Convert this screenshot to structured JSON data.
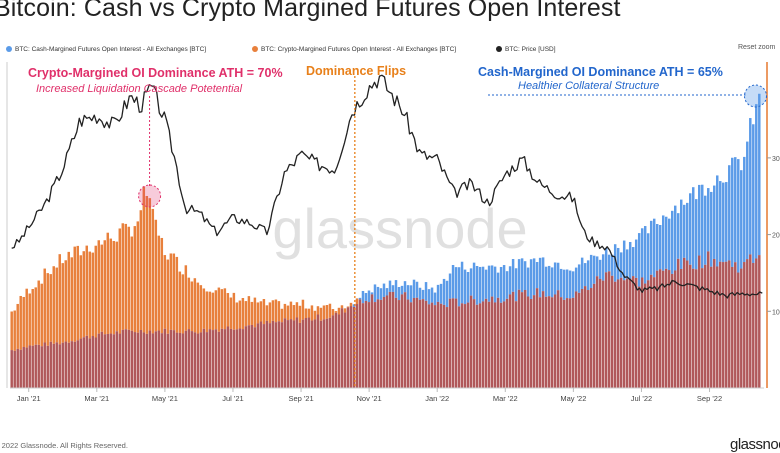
{
  "title": "Bitcoin: Cash vs Crypto Margined Futures Open Interest",
  "legend": [
    {
      "label": "BTC: Cash-Margined Futures Open Interest - All Exchanges [BTC]",
      "color": "#5b9be8"
    },
    {
      "label": "BTC: Crypto-Margined Futures Open Interest - All Exchanges [BTC]",
      "color": "#e8803c"
    },
    {
      "label": "BTC: Price [USD]",
      "color": "#222222"
    }
  ],
  "reset_label": "Reset zoom",
  "watermark": "glassnode",
  "footer": {
    "copyright": "© 2022 Glassnode. All Rights Reserved.",
    "logo": "glassnode"
  },
  "colors": {
    "cash": "#5b9be8",
    "crypto": "#e8803c",
    "overlap": "#b0585a",
    "price": "#222222",
    "ann_pink": "#e0306a",
    "ann_orange": "#e8801a",
    "ann_blue": "#2266cc"
  },
  "annotations": {
    "crypto_ath_title": "Crypto-Margined OI Dominance ATH = 70%",
    "crypto_ath_sub": "Increased Liquidation Cascade Potetential",
    "flip_title": "Dominance Flips",
    "cash_ath_title": "Cash-Margined OI Dominance ATH = 65%",
    "cash_ath_sub": "Healthier Collateral Structure"
  },
  "chart_data": {
    "type": "bar",
    "x_tick_labels": [
      "Jan '21",
      "Mar '21",
      "May '21",
      "Jul '21",
      "Sep '21",
      "Nov '21",
      "Jan '22",
      "Mar '22",
      "May '22",
      "Jul '22",
      "Sep '22"
    ],
    "x_tick_months": [
      0,
      2,
      4,
      6,
      8,
      10,
      12,
      14,
      16,
      18,
      20
    ],
    "x_range_months": [
      -0.55,
      21.6
    ],
    "right_axis_ticks": [
      "10",
      "20",
      "30"
    ],
    "right_axis_values": [
      10,
      20,
      30
    ],
    "right_axis_range": [
      0,
      42.5
    ],
    "series": [
      {
        "name": "BTC: Cash-Margined Futures Open Interest - All Exchanges [BTC]",
        "type": "bar",
        "months": [
          -0.5,
          0,
          1,
          2,
          3,
          4,
          5,
          6,
          7,
          8,
          9,
          9.5,
          10,
          11,
          12,
          12.5,
          13,
          14,
          15,
          16,
          17,
          18,
          18.5,
          19,
          20,
          21,
          21.3,
          21.5
        ],
        "values": [
          5,
          5.5,
          6,
          7,
          7.5,
          7.5,
          7.5,
          8,
          8.5,
          9,
          9.5,
          11,
          13,
          14,
          13,
          16,
          16,
          16,
          17,
          16,
          18,
          20,
          22,
          24,
          27,
          30,
          36,
          38
        ]
      },
      {
        "name": "BTC: Crypto-Margined Futures Open Interest - All Exchanges [BTC]",
        "type": "bar",
        "months": [
          -0.5,
          0,
          1,
          2,
          3,
          3.5,
          4,
          5,
          6,
          7,
          8,
          9,
          10,
          11,
          12,
          13,
          14,
          15,
          16,
          17,
          18,
          19,
          20,
          21,
          21.5
        ],
        "values": [
          10,
          13,
          17,
          19,
          21,
          24,
          18,
          14,
          12,
          11,
          11,
          10.5,
          12,
          12,
          11,
          11.5,
          12,
          12.5,
          12,
          15,
          14,
          16,
          17,
          16,
          18
        ]
      },
      {
        "name": "BTC: Price [USD]",
        "type": "line",
        "months": [
          -0.5,
          -0.3,
          0,
          0.5,
          1,
          1.5,
          2,
          2.5,
          3,
          3.3,
          3.6,
          4,
          4.3,
          4.6,
          5,
          5.5,
          6,
          6.5,
          7,
          7.5,
          8,
          8.5,
          9,
          9.5,
          10,
          10.3,
          10.7,
          11,
          11.5,
          12,
          12.5,
          13,
          13.5,
          14,
          14.5,
          15,
          15.5,
          16,
          16.3,
          16.6,
          17,
          17.5,
          18,
          18.5,
          19,
          19.5,
          20,
          20.5,
          21,
          21.5
        ],
        "values": [
          29000,
          30000,
          33000,
          38000,
          45000,
          55000,
          56000,
          54000,
          60000,
          58000,
          62000,
          55000,
          47000,
          37000,
          36000,
          32000,
          35000,
          34000,
          32000,
          44000,
          48000,
          46000,
          45000,
          57000,
          62000,
          64000,
          60000,
          57000,
          48000,
          47000,
          40000,
          42000,
          38000,
          44000,
          47000,
          42000,
          40000,
          39000,
          32000,
          30000,
          29000,
          23000,
          20000,
          20500,
          22000,
          21000,
          20000,
          19000,
          19500,
          19300
        ]
      }
    ]
  }
}
